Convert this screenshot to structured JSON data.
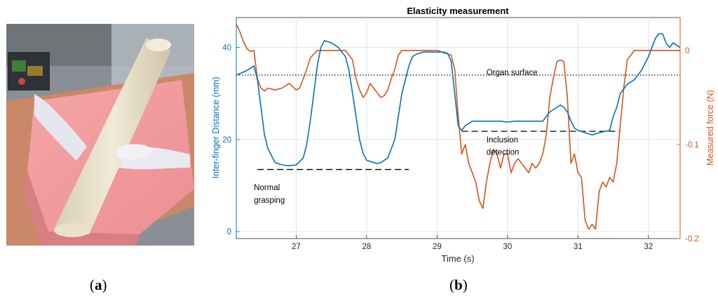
{
  "photo": {
    "description_icon": "robot-gripper-photo"
  },
  "panel_labels": {
    "a_open": "(",
    "a_letter": "a",
    "a_close": ")",
    "b_open": "(",
    "b_letter": "b",
    "b_close": ")"
  },
  "chart_data": {
    "type": "line",
    "title": "Elasticity measurement",
    "xlabel": "Time (s)",
    "ylabel_left": "Inter-finger Distance (mm)",
    "ylabel_right": "Measured force (N)",
    "xlim": [
      26.15,
      32.45
    ],
    "ylim_left": [
      -1.5,
      46.5
    ],
    "ylim_right": [
      -0.2,
      0.035
    ],
    "xticks": [
      27,
      28,
      29,
      30,
      31,
      32
    ],
    "yticks_left": [
      0,
      20,
      40
    ],
    "yticks_right": [
      0,
      -0.1,
      -0.2
    ],
    "ytick_labels_right": [
      "0",
      "-0.1",
      "-0.2"
    ],
    "colors": {
      "left": "#0072BD",
      "right": "#D95319",
      "grid": "#dde3ee"
    },
    "series": [
      {
        "name": "Inter-finger Distance",
        "axis": "left",
        "color": "#0072BD",
        "x": [
          26.15,
          26.3,
          26.4,
          26.45,
          26.5,
          26.55,
          26.6,
          26.7,
          26.8,
          26.9,
          27.0,
          27.1,
          27.15,
          27.2,
          27.25,
          27.3,
          27.35,
          27.4,
          27.5,
          27.6,
          27.7,
          27.75,
          27.8,
          27.85,
          27.9,
          27.95,
          28.0,
          28.1,
          28.15,
          28.2,
          28.3,
          28.4,
          28.5,
          28.6,
          28.65,
          28.7,
          28.8,
          28.9,
          29.0,
          29.1,
          29.15,
          29.2,
          29.25,
          29.3,
          29.35,
          29.4,
          29.5,
          29.7,
          29.9,
          30.0,
          30.1,
          30.3,
          30.5,
          30.55,
          30.6,
          30.7,
          30.75,
          30.8,
          30.85,
          30.9,
          30.95,
          31.0,
          31.1,
          31.2,
          31.3,
          31.45,
          31.5,
          31.55,
          31.6,
          31.7,
          31.8,
          31.9,
          32.0,
          32.05,
          32.1,
          32.15,
          32.2,
          32.25,
          32.3,
          32.35,
          32.45
        ],
        "y": [
          34,
          35,
          36,
          33,
          27,
          21,
          18,
          15,
          14.5,
          14.3,
          14.5,
          16,
          19,
          24,
          30,
          36,
          40,
          41.5,
          41,
          40,
          38,
          35,
          30,
          25,
          20,
          17,
          15.5,
          15,
          14.8,
          15,
          16,
          20,
          30,
          36,
          38,
          38.5,
          39,
          39,
          39,
          39,
          38.7,
          37,
          30,
          23,
          22,
          23,
          24,
          24,
          24,
          23.8,
          24,
          24,
          24,
          25,
          26,
          27,
          27.5,
          27,
          26,
          24,
          22.5,
          22,
          21.5,
          21,
          21.5,
          22,
          25,
          27,
          30,
          32,
          33,
          35,
          38,
          40,
          42,
          43,
          43,
          41,
          40,
          41,
          40
        ]
      },
      {
        "name": "Measured force",
        "axis": "right",
        "color": "#D95319",
        "x": [
          26.15,
          26.2,
          26.25,
          26.3,
          26.35,
          26.4,
          26.45,
          26.5,
          26.55,
          26.6,
          26.7,
          26.8,
          26.9,
          27.0,
          27.05,
          27.1,
          27.15,
          27.2,
          27.3,
          27.5,
          27.7,
          27.8,
          27.85,
          27.9,
          27.95,
          28.0,
          28.05,
          28.1,
          28.15,
          28.2,
          28.25,
          28.3,
          28.35,
          28.4,
          28.45,
          28.5,
          28.6,
          28.8,
          29.0,
          29.2,
          29.25,
          29.3,
          29.35,
          29.4,
          29.45,
          29.5,
          29.55,
          29.6,
          29.65,
          29.7,
          29.75,
          29.8,
          29.85,
          29.9,
          29.95,
          30.0,
          30.05,
          30.1,
          30.15,
          30.2,
          30.25,
          30.3,
          30.35,
          30.4,
          30.45,
          30.5,
          30.55,
          30.6,
          30.65,
          30.7,
          30.75,
          30.8,
          30.85,
          30.9,
          30.95,
          31.0,
          31.05,
          31.1,
          31.15,
          31.2,
          31.25,
          31.3,
          31.35,
          31.4,
          31.45,
          31.5,
          31.55,
          31.6,
          31.65,
          31.7,
          31.8,
          32.0,
          32.2,
          32.45
        ],
        "y": [
          0.028,
          0.02,
          0.01,
          0.002,
          -0.001,
          0.0,
          -0.03,
          -0.04,
          -0.043,
          -0.04,
          -0.042,
          -0.04,
          -0.035,
          -0.042,
          -0.04,
          -0.03,
          -0.02,
          -0.008,
          0.0,
          0.0,
          0.0,
          -0.01,
          -0.03,
          -0.042,
          -0.05,
          -0.045,
          -0.035,
          -0.04,
          -0.045,
          -0.05,
          -0.048,
          -0.042,
          -0.03,
          -0.02,
          -0.005,
          0.0,
          0.0,
          0.0,
          0.0,
          -0.005,
          -0.02,
          -0.07,
          -0.11,
          -0.1,
          -0.12,
          -0.13,
          -0.14,
          -0.16,
          -0.168,
          -0.14,
          -0.12,
          -0.105,
          -0.11,
          -0.125,
          -0.11,
          -0.11,
          -0.13,
          -0.12,
          -0.115,
          -0.12,
          -0.125,
          -0.13,
          -0.12,
          -0.125,
          -0.12,
          -0.11,
          -0.09,
          -0.05,
          -0.03,
          -0.012,
          -0.01,
          -0.012,
          -0.05,
          -0.12,
          -0.11,
          -0.13,
          -0.135,
          -0.18,
          -0.19,
          -0.185,
          -0.19,
          -0.15,
          -0.14,
          -0.145,
          -0.135,
          -0.14,
          -0.12,
          -0.08,
          -0.04,
          -0.01,
          0.0,
          0.0,
          0.0,
          0.0
        ]
      }
    ],
    "reference_lines": [
      {
        "name": "Organ surface",
        "axis": "left",
        "style": "dotted",
        "x": [
          26.15,
          32.45
        ],
        "y": [
          34,
          34
        ]
      },
      {
        "name": "Normal grasping",
        "axis": "left",
        "style": "dashed",
        "x": [
          26.45,
          28.6
        ],
        "y": [
          13.5,
          13.5
        ]
      },
      {
        "name": "Inclusion detection",
        "axis": "left",
        "style": "dashed",
        "x": [
          29.35,
          31.6
        ],
        "y": [
          21.8,
          21.8
        ]
      }
    ],
    "annotations": [
      {
        "text": "Organ surface",
        "x": 29.7,
        "y": 34
      },
      {
        "text": "Normal",
        "x": 26.4,
        "y": 9.0
      },
      {
        "text": "grasping",
        "x": 26.4,
        "y": 6.3
      },
      {
        "text": "Inclusion",
        "x": 29.7,
        "y": 19.4
      },
      {
        "text": "detection",
        "x": 29.7,
        "y": 16.7
      }
    ]
  }
}
